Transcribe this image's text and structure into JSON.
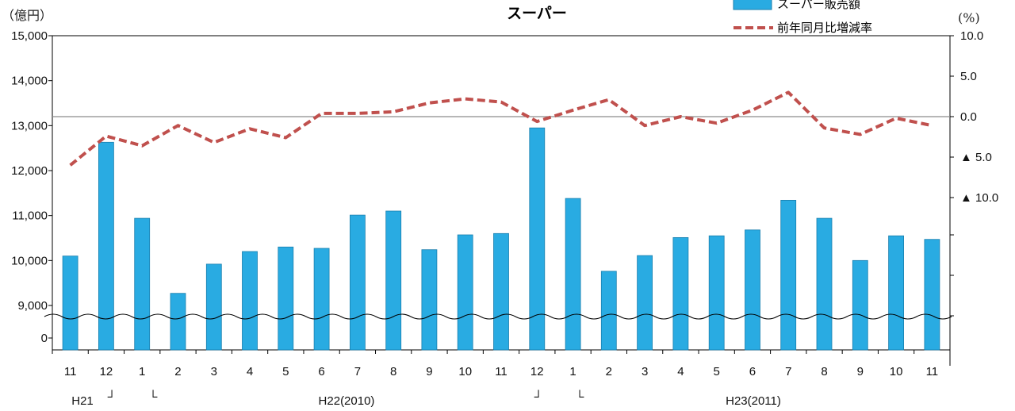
{
  "chart_data": {
    "type": "bar",
    "title": "スーパー",
    "y_left_unit": "（億円）",
    "y_right_unit": "(%)",
    "categories": [
      "11",
      "12",
      "1",
      "2",
      "3",
      "4",
      "5",
      "6",
      "7",
      "8",
      "9",
      "10",
      "11",
      "12",
      "1",
      "2",
      "3",
      "4",
      "5",
      "6",
      "7",
      "8",
      "9",
      "10",
      "11"
    ],
    "year_labels": [
      "H21",
      "H22(2010)",
      "H23(2011)"
    ],
    "year_markers": [
      "┘",
      "└",
      "┘",
      "└"
    ],
    "y_left_ticks": [
      "15,000",
      "14,000",
      "13,000",
      "12,000",
      "11,000",
      "10,000",
      "9,000",
      "0"
    ],
    "y_left_range": [
      8000,
      15000
    ],
    "y_left_axis_break": true,
    "y_right_ticks": [
      "10.0",
      "5.0",
      "0.0",
      "▲ 5.0",
      "▲ 10.0"
    ],
    "y_right_range": [
      -10,
      10
    ],
    "zero_line": true,
    "legend_position": "top-right",
    "series": [
      {
        "name": "スーパー販売額",
        "type": "bar",
        "axis": "left",
        "color": "#29abe2",
        "values": [
          10100,
          12630,
          10940,
          9270,
          9920,
          10200,
          10300,
          10270,
          11010,
          11100,
          10240,
          10570,
          10600,
          12950,
          11380,
          9760,
          10110,
          10510,
          10550,
          10680,
          11340,
          10940,
          10000,
          10550,
          10470
        ]
      },
      {
        "name": "前年同月比増減率",
        "type": "line",
        "axis": "right",
        "color": "#c0504d",
        "style": "dashed",
        "values": [
          -6.0,
          -2.4,
          -3.6,
          -1.1,
          -3.2,
          -1.5,
          -2.6,
          0.4,
          0.4,
          0.6,
          1.7,
          2.2,
          1.8,
          -0.6,
          0.8,
          2.1,
          -1.1,
          0.0,
          -0.8,
          0.8,
          3.0,
          -1.4,
          -2.2,
          -0.2,
          -1.1
        ]
      }
    ]
  }
}
